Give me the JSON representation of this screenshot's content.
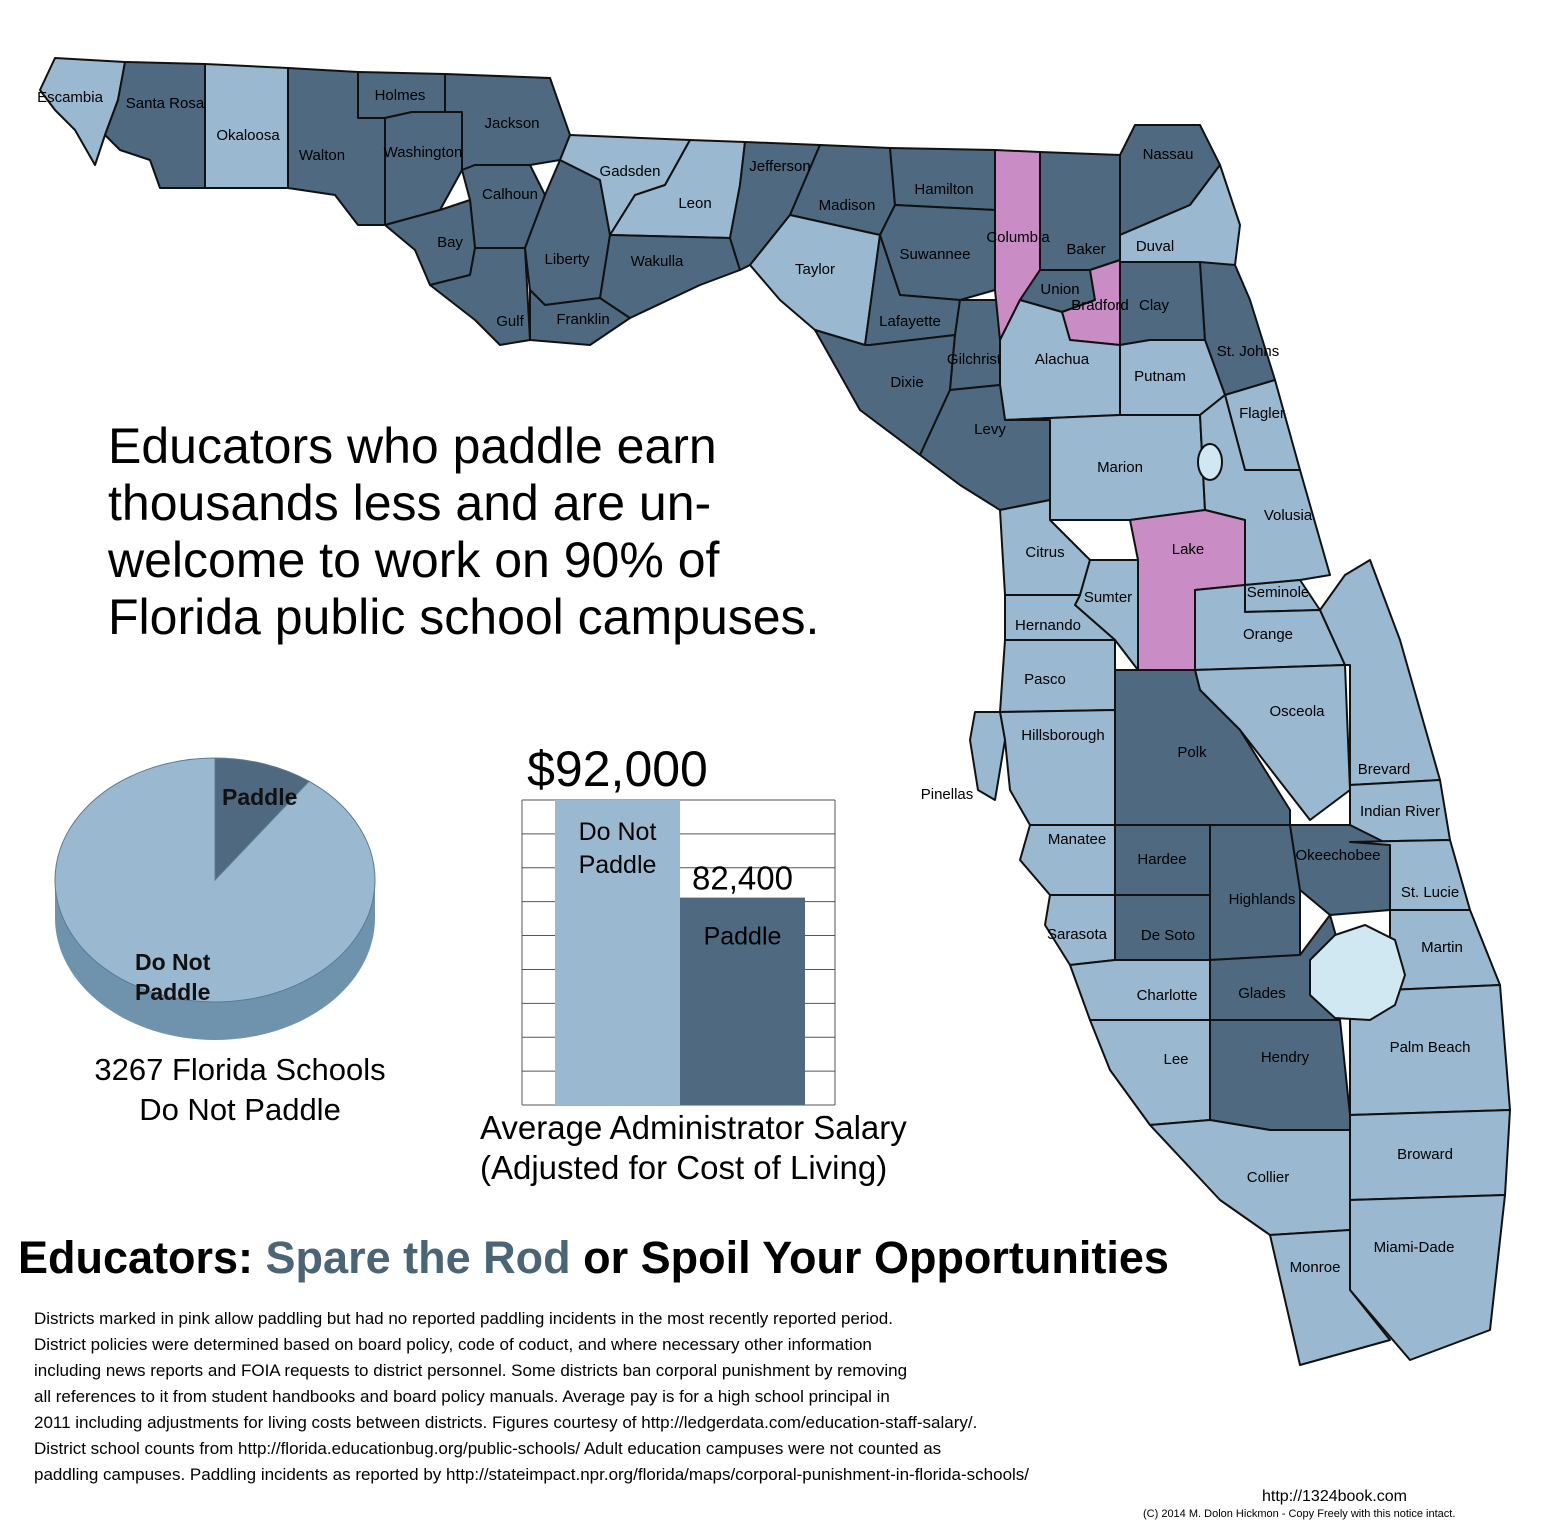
{
  "headline_lines": [
    "Educators who paddle earn",
    "thousands less and are un-",
    "welcome to work on 90% of",
    "Florida public school campuses."
  ],
  "colors": {
    "paddle": "#4f6a80",
    "no_paddle": "#9ab9d0",
    "pink": "#c98cc4",
    "water": "#cfe8f2",
    "accent": "#4b6476"
  },
  "map": {
    "counties": [
      {
        "name": "Escambia",
        "status": "no_paddle"
      },
      {
        "name": "Santa Rosa",
        "status": "paddle"
      },
      {
        "name": "Okaloosa",
        "status": "no_paddle"
      },
      {
        "name": "Walton",
        "status": "paddle"
      },
      {
        "name": "Holmes",
        "status": "paddle"
      },
      {
        "name": "Washington",
        "status": "paddle"
      },
      {
        "name": "Jackson",
        "status": "paddle"
      },
      {
        "name": "Calhoun",
        "status": "paddle"
      },
      {
        "name": "Bay",
        "status": "paddle"
      },
      {
        "name": "Gulf",
        "status": "paddle"
      },
      {
        "name": "Liberty",
        "status": "paddle"
      },
      {
        "name": "Franklin",
        "status": "paddle"
      },
      {
        "name": "Gadsden",
        "status": "no_paddle"
      },
      {
        "name": "Leon",
        "status": "no_paddle"
      },
      {
        "name": "Wakulla",
        "status": "paddle"
      },
      {
        "name": "Jefferson",
        "status": "paddle"
      },
      {
        "name": "Madison",
        "status": "paddle"
      },
      {
        "name": "Taylor",
        "status": "no_paddle"
      },
      {
        "name": "Hamilton",
        "status": "paddle"
      },
      {
        "name": "Suwannee",
        "status": "paddle"
      },
      {
        "name": "Lafayette",
        "status": "paddle"
      },
      {
        "name": "Dixie",
        "status": "paddle"
      },
      {
        "name": "Gilchrist",
        "status": "paddle"
      },
      {
        "name": "Columbia",
        "status": "pink"
      },
      {
        "name": "Baker",
        "status": "paddle"
      },
      {
        "name": "Union",
        "status": "paddle"
      },
      {
        "name": "Bradford",
        "status": "pink"
      },
      {
        "name": "Nassau",
        "status": "paddle"
      },
      {
        "name": "Duval",
        "status": "no_paddle"
      },
      {
        "name": "Clay",
        "status": "paddle"
      },
      {
        "name": "St. Johns",
        "status": "paddle"
      },
      {
        "name": "Putnam",
        "status": "no_paddle"
      },
      {
        "name": "Alachua",
        "status": "no_paddle"
      },
      {
        "name": "Levy",
        "status": "paddle"
      },
      {
        "name": "Marion",
        "status": "no_paddle"
      },
      {
        "name": "Flagler",
        "status": "no_paddle"
      },
      {
        "name": "Volusia",
        "status": "no_paddle"
      },
      {
        "name": "Lake",
        "status": "pink"
      },
      {
        "name": "Citrus",
        "status": "no_paddle"
      },
      {
        "name": "Sumter",
        "status": "no_paddle"
      },
      {
        "name": "Hernando",
        "status": "no_paddle"
      },
      {
        "name": "Seminole",
        "status": "no_paddle"
      },
      {
        "name": "Orange",
        "status": "no_paddle"
      },
      {
        "name": "Pasco",
        "status": "no_paddle"
      },
      {
        "name": "Osceola",
        "status": "no_paddle"
      },
      {
        "name": "Hillsborough",
        "status": "no_paddle"
      },
      {
        "name": "Pinellas",
        "status": "no_paddle"
      },
      {
        "name": "Polk",
        "status": "paddle"
      },
      {
        "name": "Brevard",
        "status": "no_paddle"
      },
      {
        "name": "Indian River",
        "status": "no_paddle"
      },
      {
        "name": "Manatee",
        "status": "no_paddle"
      },
      {
        "name": "Hardee",
        "status": "paddle"
      },
      {
        "name": "Highlands",
        "status": "paddle"
      },
      {
        "name": "Okeechobee",
        "status": "paddle"
      },
      {
        "name": "St. Lucie",
        "status": "no_paddle"
      },
      {
        "name": "Sarasota",
        "status": "no_paddle"
      },
      {
        "name": "De Soto",
        "status": "paddle"
      },
      {
        "name": "Martin",
        "status": "no_paddle"
      },
      {
        "name": "Charlotte",
        "status": "no_paddle"
      },
      {
        "name": "Glades",
        "status": "paddle"
      },
      {
        "name": "Palm Beach",
        "status": "no_paddle"
      },
      {
        "name": "Lee",
        "status": "no_paddle"
      },
      {
        "name": "Hendry",
        "status": "paddle"
      },
      {
        "name": "Collier",
        "status": "no_paddle"
      },
      {
        "name": "Broward",
        "status": "no_paddle"
      },
      {
        "name": "Miami-Dade",
        "status": "no_paddle"
      },
      {
        "name": "Monroe",
        "status": "no_paddle"
      }
    ]
  },
  "pie": {
    "slices": [
      {
        "label": "Paddle",
        "share": 0.1
      },
      {
        "label": "Do Not Paddle",
        "label_lines": [
          "Do Not",
          "Paddle"
        ],
        "share": 0.9
      }
    ],
    "caption_lines": [
      "3267 Florida Schools",
      "Do Not Paddle"
    ]
  },
  "chart_data": [
    {
      "type": "pie",
      "categories": [
        "Paddle",
        "Do Not Paddle"
      ],
      "values": [
        10,
        90
      ]
    },
    {
      "type": "bar",
      "categories": [
        "Do Not Paddle",
        "Paddle"
      ],
      "values": [
        92000,
        82400
      ],
      "value_labels": [
        "$92,000",
        "82,400"
      ],
      "category_label_lines": [
        [
          "Do Not",
          "Paddle"
        ],
        [
          "Paddle"
        ]
      ],
      "xlabel": "Average Administrator Salary (Adjusted for Cost of Living)",
      "ylim": [
        62000,
        92000
      ],
      "grid": true
    }
  ],
  "bar_caption_lines": [
    "Average Administrator Salary",
    "(Adjusted for Cost of Living)"
  ],
  "title": {
    "part1": "Educators: ",
    "accent": "Spare the Rod",
    "part2": " or Spoil Your Opportunities"
  },
  "notes_lines": [
    "Districts marked in pink allow paddling but had no reported paddling incidents in the most recently reported period.",
    "District policies were determined based on board policy, code of coduct, and where necessary other information",
    "including news reports and FOIA requests to district personnel. Some districts ban corporal punishment by removing",
    "all references to it from student handbooks and board policy manuals. Average pay is for a high school principal in",
    "2011 including adjustments for living costs between districts. Figures courtesy of http://ledgerdata.com/education-staff-salary/.",
    "District school counts from http://florida.educationbug.org/public-schools/ Adult education campuses were not counted as",
    "paddling campuses. Paddling incidents as reported by http://stateimpact.npr.org/florida/maps/corporal-punishment-in-florida-schools/"
  ],
  "footer": {
    "url": "http://1324book.com",
    "copyright": "(C) 2014 M. Dolon Hickmon - Copy Freely with this notice intact."
  }
}
